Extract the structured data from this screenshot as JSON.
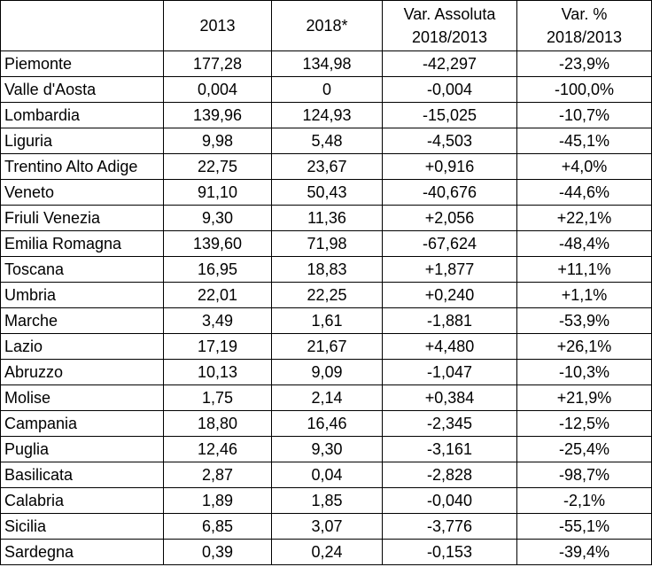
{
  "table": {
    "headers": [
      {
        "line1": "",
        "line2": ""
      },
      {
        "line1": "2013",
        "line2": ""
      },
      {
        "line1": "2018*",
        "line2": ""
      },
      {
        "line1": "Var. Assoluta",
        "line2": "2018/2013"
      },
      {
        "line1": "Var. %",
        "line2": "2018/2013"
      }
    ],
    "rows": [
      {
        "region": "Piemonte",
        "y2013": "177,28",
        "y2018": "134,98",
        "var_abs": "-42,297",
        "var_pct": "-23,9%"
      },
      {
        "region": "Valle d'Aosta",
        "y2013": "0,004",
        "y2018": "0",
        "var_abs": "-0,004",
        "var_pct": "-100,0%"
      },
      {
        "region": "Lombardia",
        "y2013": "139,96",
        "y2018": "124,93",
        "var_abs": "-15,025",
        "var_pct": "-10,7%"
      },
      {
        "region": "Liguria",
        "y2013": "9,98",
        "y2018": "5,48",
        "var_abs": "-4,503",
        "var_pct": "-45,1%"
      },
      {
        "region": "Trentino Alto Adige",
        "y2013": "22,75",
        "y2018": "23,67",
        "var_abs": "+0,916",
        "var_pct": "+4,0%"
      },
      {
        "region": "Veneto",
        "y2013": "91,10",
        "y2018": "50,43",
        "var_abs": "-40,676",
        "var_pct": "-44,6%"
      },
      {
        "region": "Friuli Venezia",
        "y2013": "9,30",
        "y2018": "11,36",
        "var_abs": "+2,056",
        "var_pct": "+22,1%"
      },
      {
        "region": "Emilia Romagna",
        "y2013": "139,60",
        "y2018": "71,98",
        "var_abs": "-67,624",
        "var_pct": "-48,4%"
      },
      {
        "region": "Toscana",
        "y2013": "16,95",
        "y2018": "18,83",
        "var_abs": "+1,877",
        "var_pct": "+11,1%"
      },
      {
        "region": "Umbria",
        "y2013": "22,01",
        "y2018": "22,25",
        "var_abs": "+0,240",
        "var_pct": "+1,1%"
      },
      {
        "region": "Marche",
        "y2013": "3,49",
        "y2018": "1,61",
        "var_abs": "-1,881",
        "var_pct": "-53,9%"
      },
      {
        "region": "Lazio",
        "y2013": "17,19",
        "y2018": "21,67",
        "var_abs": "+4,480",
        "var_pct": "+26,1%"
      },
      {
        "region": "Abruzzo",
        "y2013": "10,13",
        "y2018": "9,09",
        "var_abs": "-1,047",
        "var_pct": "-10,3%"
      },
      {
        "region": "Molise",
        "y2013": "1,75",
        "y2018": "2,14",
        "var_abs": "+0,384",
        "var_pct": "+21,9%"
      },
      {
        "region": "Campania",
        "y2013": "18,80",
        "y2018": "16,46",
        "var_abs": "-2,345",
        "var_pct": "-12,5%"
      },
      {
        "region": "Puglia",
        "y2013": "12,46",
        "y2018": "9,30",
        "var_abs": "-3,161",
        "var_pct": "-25,4%"
      },
      {
        "region": "Basilicata",
        "y2013": "2,87",
        "y2018": "0,04",
        "var_abs": "-2,828",
        "var_pct": "-98,7%"
      },
      {
        "region": "Calabria",
        "y2013": "1,89",
        "y2018": "1,85",
        "var_abs": "-0,040",
        "var_pct": "-2,1%"
      },
      {
        "region": "Sicilia",
        "y2013": "6,85",
        "y2018": "3,07",
        "var_abs": "-3,776",
        "var_pct": "-55,1%"
      },
      {
        "region": "Sardegna",
        "y2013": "0,39",
        "y2018": "0,24",
        "var_abs": "-0,153",
        "var_pct": "-39,4%"
      }
    ]
  }
}
